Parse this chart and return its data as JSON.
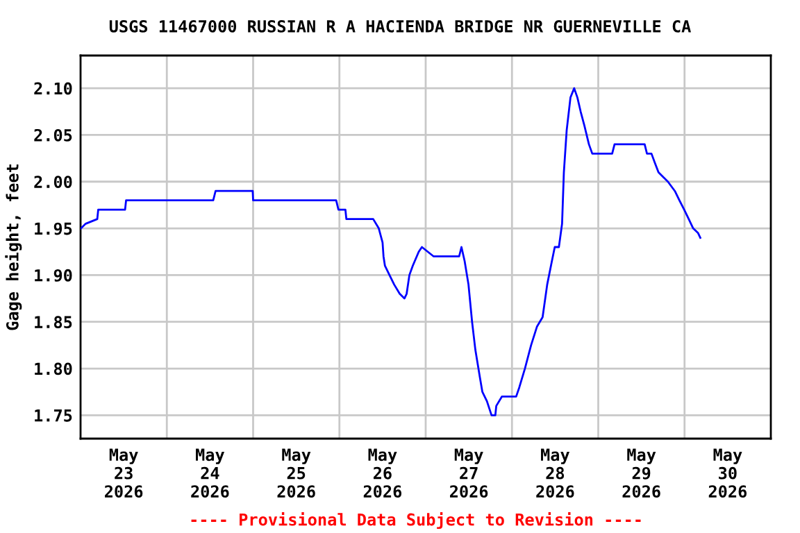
{
  "chart_data": {
    "type": "line",
    "title": "USGS 11467000 RUSSIAN R A HACIENDA BRIDGE NR GUERNEVILLE CA",
    "ylabel": "Gage height, feet",
    "annotations": [
      "---- Provisional Data Subject to Revision ----"
    ],
    "series": [
      {
        "color": "#0000ff",
        "x": [
          "2026-05-22T12:06",
          "2026-05-22T13:26",
          "2026-05-22T16:39",
          "2026-05-22T16:55",
          "2026-05-23T00:23",
          "2026-05-23T00:40",
          "2026-05-24T00:54",
          "2026-05-24T01:33",
          "2026-05-24T04:46",
          "2026-05-24T11:53",
          "2026-05-24T12:00",
          "2026-05-25T11:06",
          "2026-05-25T11:44",
          "2026-05-25T13:40",
          "2026-05-25T13:56",
          "2026-05-25T21:24",
          "2026-05-25T22:57",
          "2026-05-26T00:00",
          "2026-05-26T00:16",
          "2026-05-26T00:40",
          "2026-05-26T01:56",
          "2026-05-26T03:13",
          "2026-05-26T04:46",
          "2026-05-26T06:05",
          "2026-05-26T06:42",
          "2026-05-26T07:28",
          "2026-05-26T08:24",
          "2026-05-26T10:04",
          "2026-05-26T10:57",
          "2026-05-26T14:13",
          "2026-05-26T21:18",
          "2026-05-26T21:57",
          "2026-05-26T22:50",
          "2026-05-26T23:54",
          "2026-05-27T00:54",
          "2026-05-27T01:49",
          "2026-05-27T03:06",
          "2026-05-27T03:46",
          "2026-05-27T05:02",
          "2026-05-27T06:19",
          "2026-05-27T07:22",
          "2026-05-27T07:38",
          "2026-05-27T09:11",
          "2026-05-27T13:10",
          "2026-05-27T14:03",
          "2026-05-27T15:36",
          "2026-05-27T17:19",
          "2026-05-27T18:58",
          "2026-05-27T20:31",
          "2026-05-27T21:48",
          "2026-05-27T23:06",
          "2026-05-27T23:54",
          "2026-05-28T01:03",
          "2026-05-28T01:56",
          "2026-05-28T02:26",
          "2026-05-28T03:13",
          "2026-05-28T04:16",
          "2026-05-28T05:18",
          "2026-05-28T06:12",
          "2026-05-28T07:06",
          "2026-05-28T08:08",
          "2026-05-28T09:24",
          "2026-05-28T10:20",
          "2026-05-28T15:52",
          "2026-05-28T16:32",
          "2026-05-29T00:54",
          "2026-05-29T01:33",
          "2026-05-29T02:48",
          "2026-05-29T03:45",
          "2026-05-29T04:45",
          "2026-05-29T07:22",
          "2026-05-29T09:18",
          "2026-05-29T10:34",
          "2026-05-29T11:54",
          "2026-05-29T13:10",
          "2026-05-29T14:24",
          "2026-05-29T15:46",
          "2026-05-29T16:23"
        ],
        "values": [
          1.95,
          1.955,
          1.96,
          1.97,
          1.97,
          1.98,
          1.98,
          1.99,
          1.99,
          1.99,
          1.98,
          1.98,
          1.97,
          1.97,
          1.96,
          1.96,
          1.95,
          1.935,
          1.92,
          1.91,
          1.9,
          1.89,
          1.88,
          1.875,
          1.88,
          1.9,
          1.91,
          1.925,
          1.93,
          1.92,
          1.92,
          1.93,
          1.915,
          1.89,
          1.85,
          1.82,
          1.79,
          1.775,
          1.765,
          1.75,
          1.75,
          1.76,
          1.77,
          1.77,
          1.78,
          1.8,
          1.825,
          1.845,
          1.855,
          1.89,
          1.915,
          1.93,
          1.93,
          1.955,
          2.01,
          2.055,
          2.09,
          2.1,
          2.09,
          2.075,
          2.06,
          2.04,
          2.03,
          2.03,
          2.04,
          2.04,
          2.03,
          2.03,
          2.02,
          2.01,
          2.0,
          1.99,
          1.98,
          1.97,
          1.96,
          1.95,
          1.945,
          1.94
        ]
      }
    ],
    "xlim": [
      "2026-05-22T12:00",
      "2026-05-30T12:00"
    ],
    "xticks": [
      {
        "value": "2026-05-23",
        "label": "May\n23\n2026"
      },
      {
        "value": "2026-05-24",
        "label": "May\n24\n2026"
      },
      {
        "value": "2026-05-25",
        "label": "May\n25\n2026"
      },
      {
        "value": "2026-05-26",
        "label": "May\n26\n2026"
      },
      {
        "value": "2026-05-27",
        "label": "May\n27\n2026"
      },
      {
        "value": "2026-05-28",
        "label": "May\n28\n2026"
      },
      {
        "value": "2026-05-29",
        "label": "May\n29\n2026"
      },
      {
        "value": "2026-05-30",
        "label": "May\n30\n2026"
      },
      {
        "value": "2026-05-23T12:00",
        "label": null
      },
      {
        "value": "2026-05-24T12:00",
        "label": null
      },
      {
        "value": "2026-05-25T12:00",
        "label": null
      },
      {
        "value": "2026-05-26T12:00",
        "label": null
      },
      {
        "value": "2026-05-27T12:00",
        "label": null
      },
      {
        "value": "2026-05-28T12:00",
        "label": null
      },
      {
        "value": "2026-05-29T12:00",
        "label": null
      }
    ],
    "ylim": [
      1.725,
      2.135
    ],
    "yticks": [
      1.75,
      {
        "value": 1.8,
        "label": "1.80"
      },
      1.85,
      {
        "value": 1.9,
        "label": "1.90"
      },
      1.95,
      {
        "value": 2.0,
        "label": "2.00"
      },
      2.05,
      {
        "value": 2.1,
        "label": "2.10"
      }
    ],
    "grid": true,
    "marker": "none",
    "line_style": "solid"
  }
}
